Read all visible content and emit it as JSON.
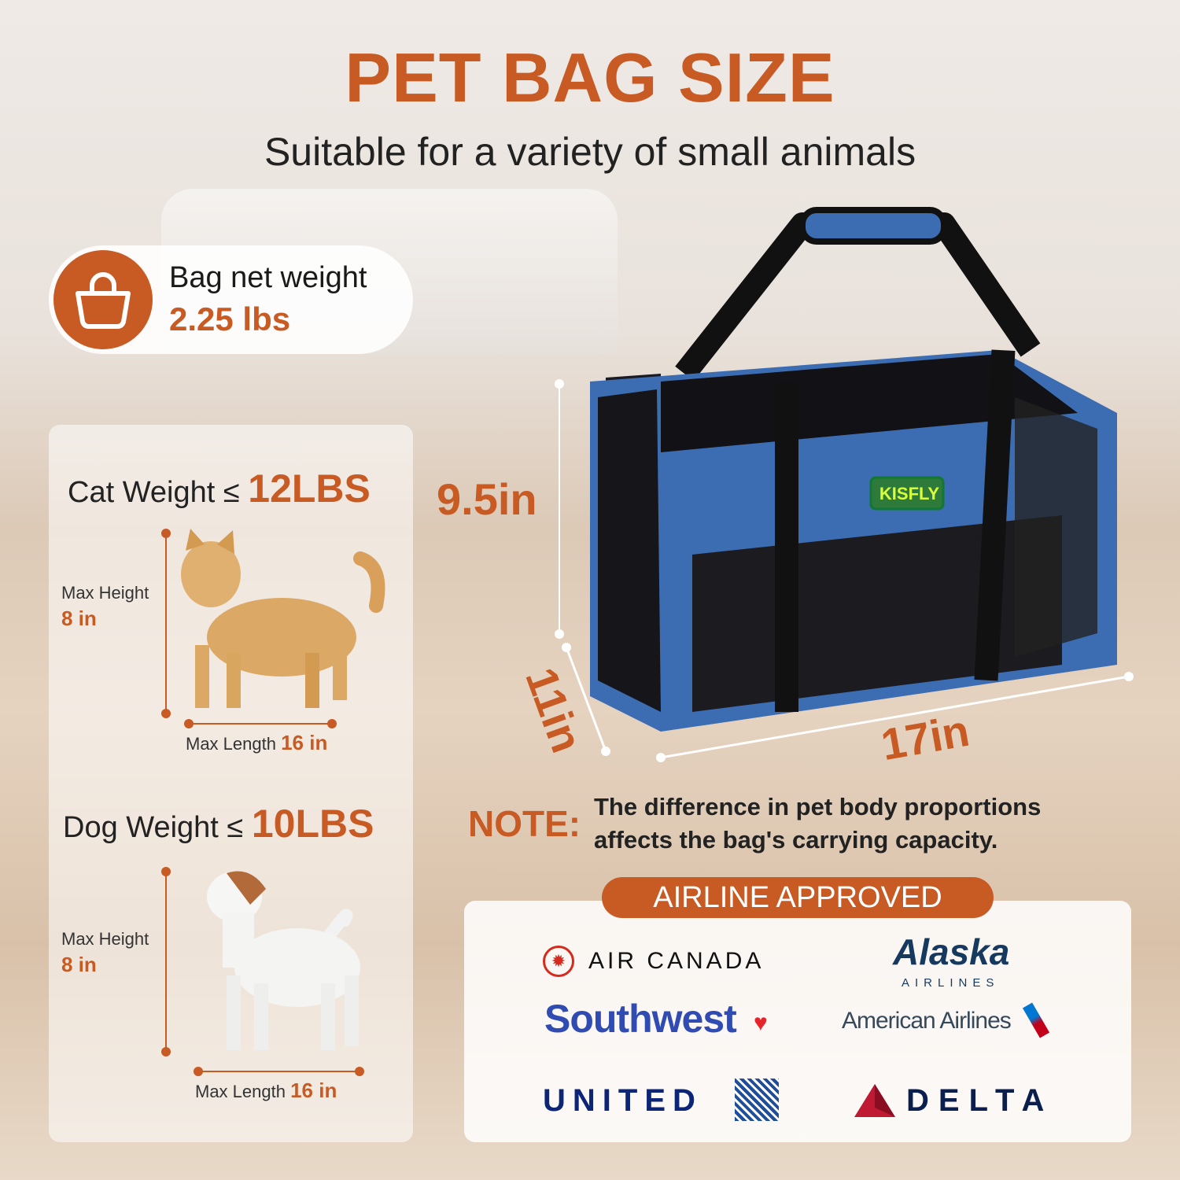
{
  "header": {
    "title": "PET BAG SIZE",
    "subtitle": "Suitable for a variety of small animals"
  },
  "weight_badge": {
    "icon": "shopping-bag-icon",
    "label": "Bag net weight",
    "value": "2.25 lbs"
  },
  "cat": {
    "label": "Cat Weight",
    "symbol": "≤",
    "value": "12LBS",
    "height_label": "Max Height",
    "height_value": "8 in",
    "length_label": "Max Length",
    "length_value": "16 in"
  },
  "dog": {
    "label": "Dog Weight",
    "symbol": "≤",
    "value": "10LBS",
    "height_label": "Max Height",
    "height_value": "8 in",
    "length_label": "Max Length",
    "length_value": "16 in"
  },
  "bag": {
    "brand": "KISFLY",
    "height": "9.5in",
    "width": "11in",
    "length": "17in"
  },
  "note": {
    "label": "NOTE:",
    "line1": "The difference in pet body proportions",
    "line2": "affects the bag's carrying capacity."
  },
  "airlines": {
    "title": "AIRLINE APPROVED",
    "items": [
      "AIR CANADA",
      "Alaska",
      "AIRLINES",
      "Southwest",
      "American Airlines",
      "UNITED",
      "DELTA"
    ]
  },
  "colors": {
    "accent": "#c85a24",
    "bag_blue": "#3c6db3",
    "text": "#222222"
  }
}
